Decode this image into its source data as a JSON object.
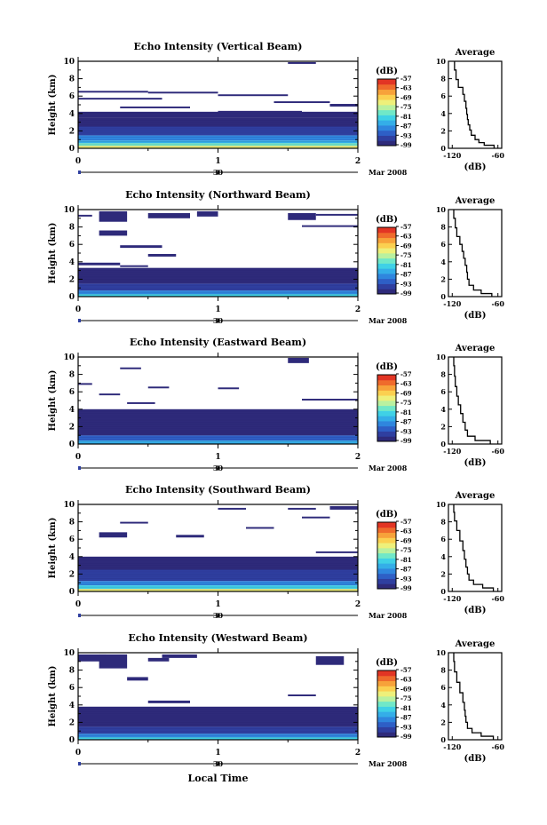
{
  "colors": {
    "scale": [
      "#2e2a7a",
      "#2f3fa0",
      "#2e5fc6",
      "#2f86de",
      "#34aee8",
      "#3fd1e6",
      "#70e8c8",
      "#b9f1a0",
      "#eef07a",
      "#fbd050",
      "#f7a23a",
      "#ef6b2c",
      "#e23524"
    ]
  },
  "common": {
    "ylabel": "Height (km)",
    "yticks": [
      "0",
      "2",
      "4",
      "6",
      "8",
      "10"
    ],
    "xticks": [
      "0",
      "1",
      "2"
    ],
    "date_day": "30",
    "date_label": "Mar 2008",
    "cb_title": "(dB)",
    "cb_ticks": [
      "-57",
      "-63",
      "-69",
      "-75",
      "-81",
      "-87",
      "-93",
      "-99"
    ],
    "avg_title": "Average",
    "avg_xlabel": "(dB)",
    "avg_xticks": [
      "-120",
      "-60"
    ],
    "avg_yticks": [
      "0",
      "2",
      "4",
      "6",
      "8",
      "10"
    ],
    "xlabel": "Local Time"
  },
  "panels": [
    {
      "title": "Echo Intensity (Vertical Beam)",
      "xticks": [
        "0",
        "1",
        "2"
      ]
    },
    {
      "title": "Echo Intensity (Northward Beam)",
      "xticks": [
        "0",
        "1",
        "2"
      ]
    },
    {
      "title": "Echo Intensity (Eastward Beam)",
      "xticks": [
        "0",
        "1",
        "2"
      ]
    },
    {
      "title": "Echo Intensity (Southward Beam)",
      "xticks": [
        "0",
        "1",
        "2"
      ]
    },
    {
      "title": "Echo Intensity (Westward Beam)",
      "xticks": [
        "0",
        "1",
        "2"
      ]
    }
  ],
  "chart_data": [
    {
      "type": "heatmap",
      "title": "Echo Intensity (Vertical Beam)",
      "ylabel": "Height (km)",
      "xlim": [
        0,
        2
      ],
      "ylim": [
        0,
        10
      ],
      "colorbar": {
        "label": "(dB)",
        "ticks": [
          -57,
          -63,
          -69,
          -75,
          -81,
          -87,
          -93,
          -99
        ]
      },
      "layers": [
        {
          "h0": 0.0,
          "h1": 0.3,
          "v": -72
        },
        {
          "h0": 0.3,
          "h1": 0.6,
          "v": -78
        },
        {
          "h0": 0.6,
          "h1": 0.9,
          "v": -84
        },
        {
          "h0": 0.9,
          "h1": 1.5,
          "v": -90
        },
        {
          "h0": 1.5,
          "h1": 2.5,
          "v": -95
        },
        {
          "h0": 2.5,
          "h1": 3.5,
          "v": -98
        },
        {
          "h0": 3.5,
          "h1": 4.2,
          "v": -99
        }
      ],
      "patches": [
        [
          0.0,
          0.5,
          6.4,
          6.6
        ],
        [
          0.5,
          1.0,
          6.3,
          6.5
        ],
        [
          1.0,
          1.5,
          6.0,
          6.2
        ],
        [
          1.4,
          1.8,
          5.2,
          5.4
        ],
        [
          1.5,
          1.7,
          9.7,
          9.9
        ],
        [
          0.3,
          0.8,
          4.6,
          4.8
        ],
        [
          1.8,
          2.0,
          4.8,
          5.1
        ],
        [
          0.0,
          0.6,
          5.6,
          5.8
        ],
        [
          1.0,
          1.6,
          4.0,
          4.3
        ]
      ],
      "average": {
        "xlim": [
          -120,
          -60
        ],
        "x": [
          -65,
          -78,
          -85,
          -90,
          -95,
          -97,
          -99,
          -100,
          -101,
          -102,
          -104,
          -106,
          -112,
          -115,
          -117
        ],
        "y": [
          0.2,
          0.5,
          0.8,
          1.2,
          1.8,
          2.4,
          3.0,
          3.6,
          4.2,
          5.0,
          5.8,
          6.6,
          7.4,
          8.4,
          9.6
        ]
      }
    },
    {
      "type": "heatmap",
      "title": "Echo Intensity (Northward Beam)",
      "ylabel": "Height (km)",
      "xlim": [
        0,
        2
      ],
      "ylim": [
        0,
        10
      ],
      "colorbar": {
        "label": "(dB)",
        "ticks": [
          -57,
          -63,
          -69,
          -75,
          -81,
          -87,
          -93,
          -99
        ]
      },
      "layers": [
        {
          "h0": 0.0,
          "h1": 0.3,
          "v": -80
        },
        {
          "h0": 0.3,
          "h1": 0.7,
          "v": -88
        },
        {
          "h0": 0.7,
          "h1": 1.5,
          "v": -95
        },
        {
          "h0": 1.5,
          "h1": 3.3,
          "v": -99
        }
      ],
      "patches": [
        [
          0.15,
          0.35,
          8.6,
          9.8
        ],
        [
          0.15,
          0.35,
          7.0,
          7.6
        ],
        [
          0.5,
          0.8,
          9.0,
          9.6
        ],
        [
          0.85,
          1.0,
          9.2,
          9.8
        ],
        [
          1.5,
          1.7,
          8.8,
          9.6
        ],
        [
          0.0,
          0.1,
          9.2,
          9.4
        ],
        [
          1.7,
          2.0,
          9.3,
          9.5
        ],
        [
          0.3,
          0.6,
          5.6,
          5.9
        ],
        [
          0.5,
          0.7,
          4.6,
          4.9
        ],
        [
          0.0,
          0.3,
          3.6,
          3.9
        ],
        [
          1.6,
          2.0,
          8.0,
          8.2
        ],
        [
          0.3,
          0.5,
          3.4,
          3.6
        ]
      ],
      "average": {
        "xlim": [
          -120,
          -60
        ],
        "x": [
          -68,
          -82,
          -92,
          -98,
          -100,
          -101,
          -103,
          -105,
          -107,
          -110,
          -114,
          -116,
          -118
        ],
        "y": [
          0.2,
          0.5,
          1.0,
          1.6,
          2.4,
          3.2,
          4.0,
          4.8,
          5.6,
          6.4,
          7.4,
          8.4,
          9.6
        ]
      }
    },
    {
      "type": "heatmap",
      "title": "Echo Intensity (Eastward Beam)",
      "ylabel": "Height (km)",
      "xlim": [
        0,
        2
      ],
      "ylim": [
        0,
        10
      ],
      "colorbar": {
        "label": "(dB)",
        "ticks": [
          -57,
          -63,
          -69,
          -75,
          -81,
          -87,
          -93,
          -99
        ]
      },
      "layers": [
        {
          "h0": 0.0,
          "h1": 0.4,
          "v": -86
        },
        {
          "h0": 0.4,
          "h1": 1.0,
          "v": -93
        },
        {
          "h0": 1.0,
          "h1": 4.0,
          "v": -99
        }
      ],
      "patches": [
        [
          1.5,
          1.65,
          9.3,
          9.9
        ],
        [
          0.3,
          0.45,
          8.6,
          8.8
        ],
        [
          0.5,
          0.65,
          6.4,
          6.6
        ],
        [
          1.0,
          1.15,
          6.3,
          6.5
        ],
        [
          0.15,
          0.3,
          5.6,
          5.8
        ],
        [
          0.35,
          0.55,
          4.6,
          4.8
        ],
        [
          0.0,
          0.1,
          6.8,
          7.0
        ],
        [
          1.6,
          2.0,
          5.0,
          5.2
        ]
      ],
      "average": {
        "xlim": [
          -120,
          -60
        ],
        "x": [
          -70,
          -90,
          -100,
          -103,
          -106,
          -109,
          -112,
          -114,
          -116,
          -117,
          -118
        ],
        "y": [
          0.2,
          0.6,
          1.2,
          2.0,
          3.0,
          4.0,
          5.0,
          6.0,
          7.2,
          8.4,
          9.6
        ]
      }
    },
    {
      "type": "heatmap",
      "title": "Echo Intensity (Southward Beam)",
      "ylabel": "Height (km)",
      "xlim": [
        0,
        2
      ],
      "ylim": [
        0,
        10
      ],
      "colorbar": {
        "label": "(dB)",
        "ticks": [
          -57,
          -63,
          -69,
          -75,
          -81,
          -87,
          -93,
          -99
        ]
      },
      "layers": [
        {
          "h0": 0.0,
          "h1": 0.3,
          "v": -70
        },
        {
          "h0": 0.3,
          "h1": 0.7,
          "v": -80
        },
        {
          "h0": 0.7,
          "h1": 1.2,
          "v": -90
        },
        {
          "h0": 1.2,
          "h1": 2.5,
          "v": -96
        },
        {
          "h0": 2.5,
          "h1": 4.0,
          "v": -99
        }
      ],
      "patches": [
        [
          0.15,
          0.35,
          6.2,
          6.8
        ],
        [
          0.3,
          0.5,
          7.8,
          8.0
        ],
        [
          0.7,
          0.9,
          6.2,
          6.5
        ],
        [
          1.2,
          1.4,
          7.2,
          7.4
        ],
        [
          1.5,
          1.7,
          9.4,
          9.6
        ],
        [
          1.8,
          2.0,
          9.4,
          9.8
        ],
        [
          1.0,
          1.2,
          9.4,
          9.6
        ],
        [
          1.6,
          1.8,
          8.4,
          8.6
        ],
        [
          1.7,
          2.0,
          4.4,
          4.6
        ]
      ],
      "average": {
        "xlim": [
          -120,
          -60
        ],
        "x": [
          -66,
          -80,
          -92,
          -98,
          -100,
          -102,
          -104,
          -106,
          -110,
          -114,
          -117,
          -118
        ],
        "y": [
          0.2,
          0.6,
          1.0,
          1.6,
          2.4,
          3.2,
          4.2,
          5.2,
          6.4,
          7.6,
          8.6,
          9.6
        ]
      }
    },
    {
      "type": "heatmap",
      "title": "Echo Intensity (Westward Beam)",
      "ylabel": "Height (km)",
      "xlim": [
        0,
        2
      ],
      "ylim": [
        0,
        10
      ],
      "colorbar": {
        "label": "(dB)",
        "ticks": [
          -57,
          -63,
          -69,
          -75,
          -81,
          -87,
          -93,
          -99
        ]
      },
      "layers": [
        {
          "h0": 0.0,
          "h1": 0.3,
          "v": -82
        },
        {
          "h0": 0.3,
          "h1": 0.7,
          "v": -90
        },
        {
          "h0": 0.7,
          "h1": 1.5,
          "v": -96
        },
        {
          "h0": 1.5,
          "h1": 3.8,
          "v": -99
        }
      ],
      "patches": [
        [
          0.15,
          0.35,
          8.2,
          9.8
        ],
        [
          0.35,
          0.5,
          6.8,
          7.2
        ],
        [
          0.5,
          0.65,
          9.0,
          9.4
        ],
        [
          0.6,
          0.85,
          9.4,
          9.8
        ],
        [
          1.7,
          1.9,
          8.6,
          9.6
        ],
        [
          0.0,
          0.2,
          9.0,
          9.8
        ],
        [
          1.5,
          1.7,
          5.0,
          5.2
        ],
        [
          0.5,
          0.8,
          4.2,
          4.5
        ]
      ],
      "average": {
        "xlim": [
          -120,
          -60
        ],
        "x": [
          -66,
          -82,
          -94,
          -100,
          -102,
          -103,
          -104,
          -106,
          -110,
          -114,
          -117,
          -118
        ],
        "y": [
          0.2,
          0.6,
          1.0,
          1.6,
          2.4,
          3.0,
          3.8,
          4.8,
          6.0,
          7.2,
          8.4,
          9.6
        ]
      }
    }
  ]
}
